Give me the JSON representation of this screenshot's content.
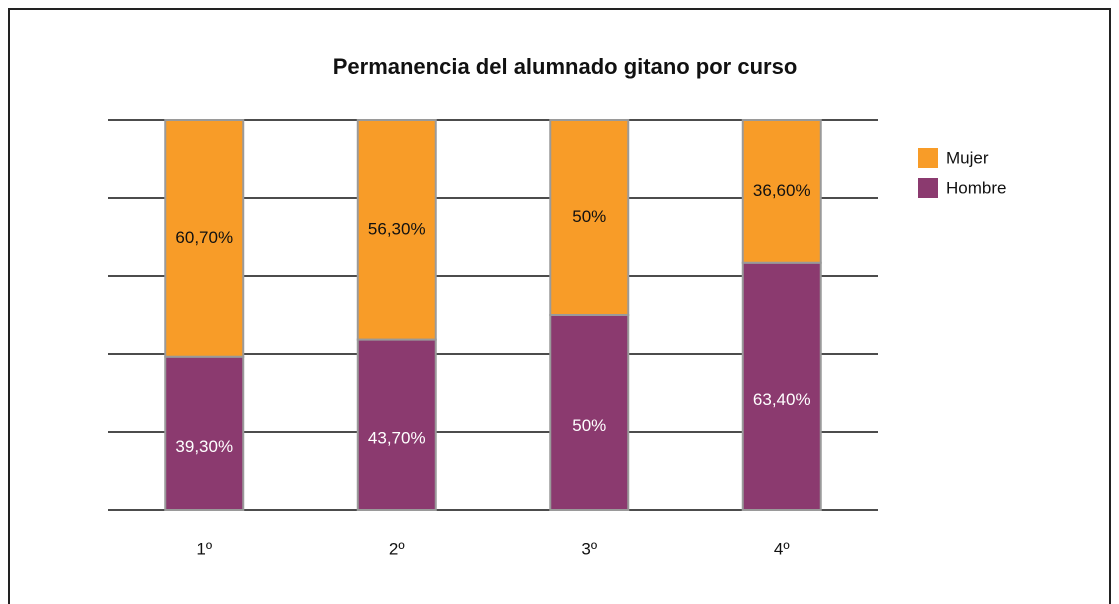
{
  "chart_data": {
    "type": "stacked_bar",
    "title": "Permanencia del alumnado gitano por curso",
    "categories": [
      "1º",
      "2º",
      "3º",
      "4º"
    ],
    "series": [
      {
        "name": "Hombre",
        "color": "#8b3a6f",
        "label_color": "#ffffff",
        "values": [
          39.3,
          43.7,
          50,
          63.4
        ],
        "value_labels": [
          "39,30%",
          "43,70%",
          "50%",
          "63,40%"
        ]
      },
      {
        "name": "Mujer",
        "color": "#f89c28",
        "label_color": "#111111",
        "values": [
          60.7,
          56.3,
          50,
          36.6
        ],
        "value_labels": [
          "60,70%",
          "56,30%",
          "50%",
          "36,60%"
        ]
      }
    ],
    "ylim": [
      0,
      100
    ],
    "yticks": [
      0,
      20,
      40,
      60,
      80,
      100
    ],
    "grid": true,
    "legend": "right"
  }
}
